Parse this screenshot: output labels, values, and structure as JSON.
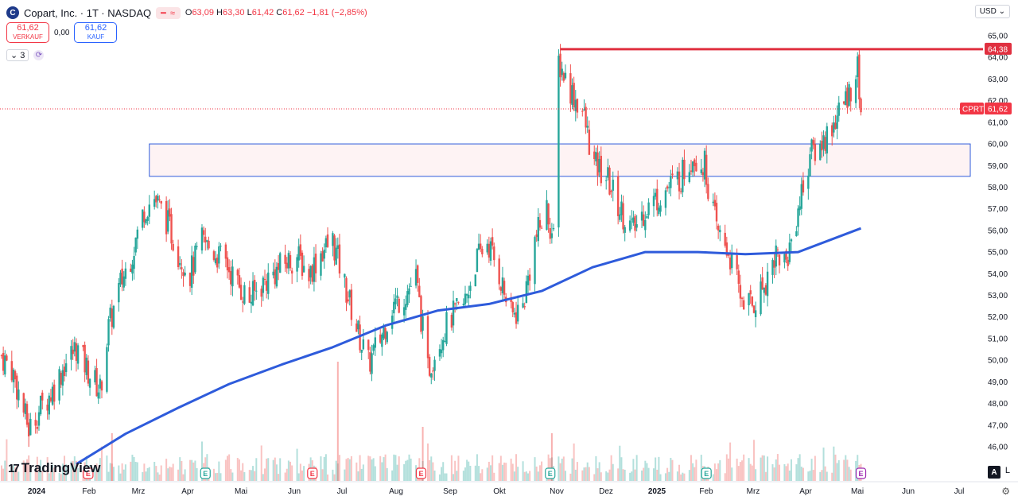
{
  "header": {
    "logo_letter": "C",
    "title": "Copart, Inc. · 1T · NASDAQ",
    "pill": "≈",
    "ohlc_o_label": "O",
    "ohlc_o": "63,09",
    "ohlc_h_label": "H",
    "ohlc_h": "63,30",
    "ohlc_l_label": "L",
    "ohlc_l": "61,42",
    "ohlc_c_label": "C",
    "ohlc_c": "61,62",
    "ohlc_change": "−1,81 (−2,85%)"
  },
  "trade": {
    "sell_price": "61,62",
    "sell_label": "VERKAUF",
    "spread": "0,00",
    "buy_price": "61,62",
    "buy_label": "KAUF"
  },
  "indicators": {
    "count": "3"
  },
  "currency": "USD",
  "branding": {
    "mark": "17",
    "name": "TradingView"
  },
  "controls": {
    "log": "L",
    "auto": "A",
    "settings": "⚙"
  },
  "colors": {
    "up": "#26a69a",
    "down": "#ef5350",
    "ma": "#2e5bdb",
    "zone_border": "#2e5bdb",
    "resistance": "#e03040"
  },
  "chart_data": {
    "type": "candlestick",
    "symbol": "CPRT",
    "timeframe": "1T",
    "ylim": [
      45.0,
      65.5
    ],
    "yticks": [
      "65,00",
      "64,00",
      "63,00",
      "62,00",
      "61,00",
      "60,00",
      "59,00",
      "58,00",
      "57,00",
      "56,00",
      "55,00",
      "54,00",
      "53,00",
      "52,00",
      "51,00",
      "50,00",
      "49,00",
      "48,00",
      "47,00",
      "46,00"
    ],
    "xticks": [
      {
        "label": "2024",
        "year": true
      },
      {
        "label": "Feb"
      },
      {
        "label": "Mrz"
      },
      {
        "label": "Apr"
      },
      {
        "label": "Mai"
      },
      {
        "label": "Jun"
      },
      {
        "label": "Jul"
      },
      {
        "label": "Aug"
      },
      {
        "label": "Sep"
      },
      {
        "label": "Okt"
      },
      {
        "label": "Nov"
      },
      {
        "label": "Dez"
      },
      {
        "label": "2025",
        "year": true
      },
      {
        "label": "Feb"
      },
      {
        "label": "Mrz"
      },
      {
        "label": "Apr"
      },
      {
        "label": "Mai"
      },
      {
        "label": "Jun"
      },
      {
        "label": "Jul"
      }
    ],
    "price_path": [
      [
        "2024-01-02",
        50.2
      ],
      [
        "2024-01-08",
        49.6
      ],
      [
        "2024-01-12",
        48.5
      ],
      [
        "2024-01-18",
        46.8
      ],
      [
        "2024-01-25",
        47.8
      ],
      [
        "2024-02-01",
        48.6
      ],
      [
        "2024-02-08",
        49.8
      ],
      [
        "2024-02-15",
        50.6
      ],
      [
        "2024-02-22",
        49.5
      ],
      [
        "2024-02-29",
        48.6
      ],
      [
        "2024-03-05",
        51.5
      ],
      [
        "2024-03-12",
        53.5
      ],
      [
        "2024-03-19",
        55.0
      ],
      [
        "2024-03-26",
        57.0
      ],
      [
        "2024-04-01",
        57.5
      ],
      [
        "2024-04-08",
        56.5
      ],
      [
        "2024-04-15",
        55.0
      ],
      [
        "2024-04-22",
        54.0
      ],
      [
        "2024-04-29",
        55.5
      ],
      [
        "2024-05-06",
        55.0
      ],
      [
        "2024-05-13",
        54.5
      ],
      [
        "2024-05-20",
        53.5
      ],
      [
        "2024-05-27",
        52.8
      ],
      [
        "2024-06-03",
        53.5
      ],
      [
        "2024-06-10",
        54.0
      ],
      [
        "2024-06-17",
        54.5
      ],
      [
        "2024-06-24",
        54.8
      ],
      [
        "2024-07-01",
        54.0
      ],
      [
        "2024-07-08",
        55.0
      ],
      [
        "2024-07-15",
        55.5
      ],
      [
        "2024-07-22",
        53.5
      ],
      [
        "2024-07-29",
        51.5
      ],
      [
        "2024-08-05",
        49.8
      ],
      [
        "2024-08-12",
        51.0
      ],
      [
        "2024-08-19",
        52.5
      ],
      [
        "2024-08-26",
        53.0
      ],
      [
        "2024-09-02",
        53.8
      ],
      [
        "2024-09-09",
        49.5
      ],
      [
        "2024-09-16",
        51.0
      ],
      [
        "2024-09-23",
        52.0
      ],
      [
        "2024-09-30",
        52.5
      ],
      [
        "2024-10-07",
        54.5
      ],
      [
        "2024-10-14",
        55.5
      ],
      [
        "2024-10-21",
        54.0
      ],
      [
        "2024-10-28",
        52.0
      ],
      [
        "2024-11-04",
        52.5
      ],
      [
        "2024-11-11",
        55.5
      ],
      [
        "2024-11-18",
        57.0
      ],
      [
        "2024-11-22",
        55.5
      ],
      [
        "2024-11-25",
        63.8
      ],
      [
        "2024-12-02",
        62.5
      ],
      [
        "2024-12-09",
        61.5
      ],
      [
        "2024-12-16",
        59.0
      ],
      [
        "2024-12-23",
        58.5
      ],
      [
        "2024-12-31",
        57.0
      ],
      [
        "2025-01-08",
        56.0
      ],
      [
        "2025-01-15",
        57.0
      ],
      [
        "2025-01-22",
        57.5
      ],
      [
        "2025-01-29",
        58.0
      ],
      [
        "2025-02-05",
        58.5
      ],
      [
        "2025-02-12",
        59.5
      ],
      [
        "2025-02-19",
        59.0
      ],
      [
        "2025-02-26",
        56.0
      ],
      [
        "2025-03-05",
        55.0
      ],
      [
        "2025-03-12",
        53.0
      ],
      [
        "2025-03-19",
        52.5
      ],
      [
        "2025-03-26",
        53.5
      ],
      [
        "2025-04-02",
        55.0
      ],
      [
        "2025-04-08",
        54.5
      ],
      [
        "2025-04-15",
        57.0
      ],
      [
        "2025-04-22",
        59.5
      ],
      [
        "2025-04-29",
        60.0
      ],
      [
        "2025-05-06",
        61.0
      ],
      [
        "2025-05-13",
        62.0
      ],
      [
        "2025-05-20",
        63.5
      ],
      [
        "2025-05-22",
        61.62
      ]
    ],
    "moving_average": [
      [
        "2024-02-15",
        45.2
      ],
      [
        "2024-03-15",
        46.6
      ],
      [
        "2024-04-15",
        47.8
      ],
      [
        "2024-05-15",
        48.9
      ],
      [
        "2024-06-15",
        49.8
      ],
      [
        "2024-07-15",
        50.6
      ],
      [
        "2024-08-15",
        51.6
      ],
      [
        "2024-09-15",
        52.3
      ],
      [
        "2024-10-15",
        52.6
      ],
      [
        "2024-11-15",
        53.2
      ],
      [
        "2024-12-15",
        54.3
      ],
      [
        "2025-01-15",
        55.0
      ],
      [
        "2025-02-15",
        55.0
      ],
      [
        "2025-03-15",
        54.9
      ],
      [
        "2025-04-15",
        55.0
      ],
      [
        "2025-05-22",
        56.1
      ]
    ],
    "zone": {
      "from_date": "2024-03-29",
      "to_date": "2025-07-31",
      "low": 58.5,
      "high": 60.0
    },
    "resistance": {
      "from_date": "2024-11-26",
      "to_date": "2025-07-31",
      "value": 64.38,
      "label": "64,38"
    },
    "last_price": {
      "value": 61.62,
      "symbol_label": "CPRT",
      "label": "61,62"
    },
    "events": [
      {
        "date": "2024-02-22",
        "label": "E"
      },
      {
        "date": "2024-05-01",
        "label": "E"
      },
      {
        "date": "2024-07-03",
        "label": "E"
      },
      {
        "date": "2024-09-05",
        "label": "E"
      },
      {
        "date": "2024-11-20",
        "label": "E"
      },
      {
        "date": "2025-02-20",
        "label": "E"
      },
      {
        "date": "2025-05-22",
        "label": "E",
        "future": true
      }
    ],
    "volume": {
      "note": "relative volume bars, colored by candle direction"
    }
  }
}
